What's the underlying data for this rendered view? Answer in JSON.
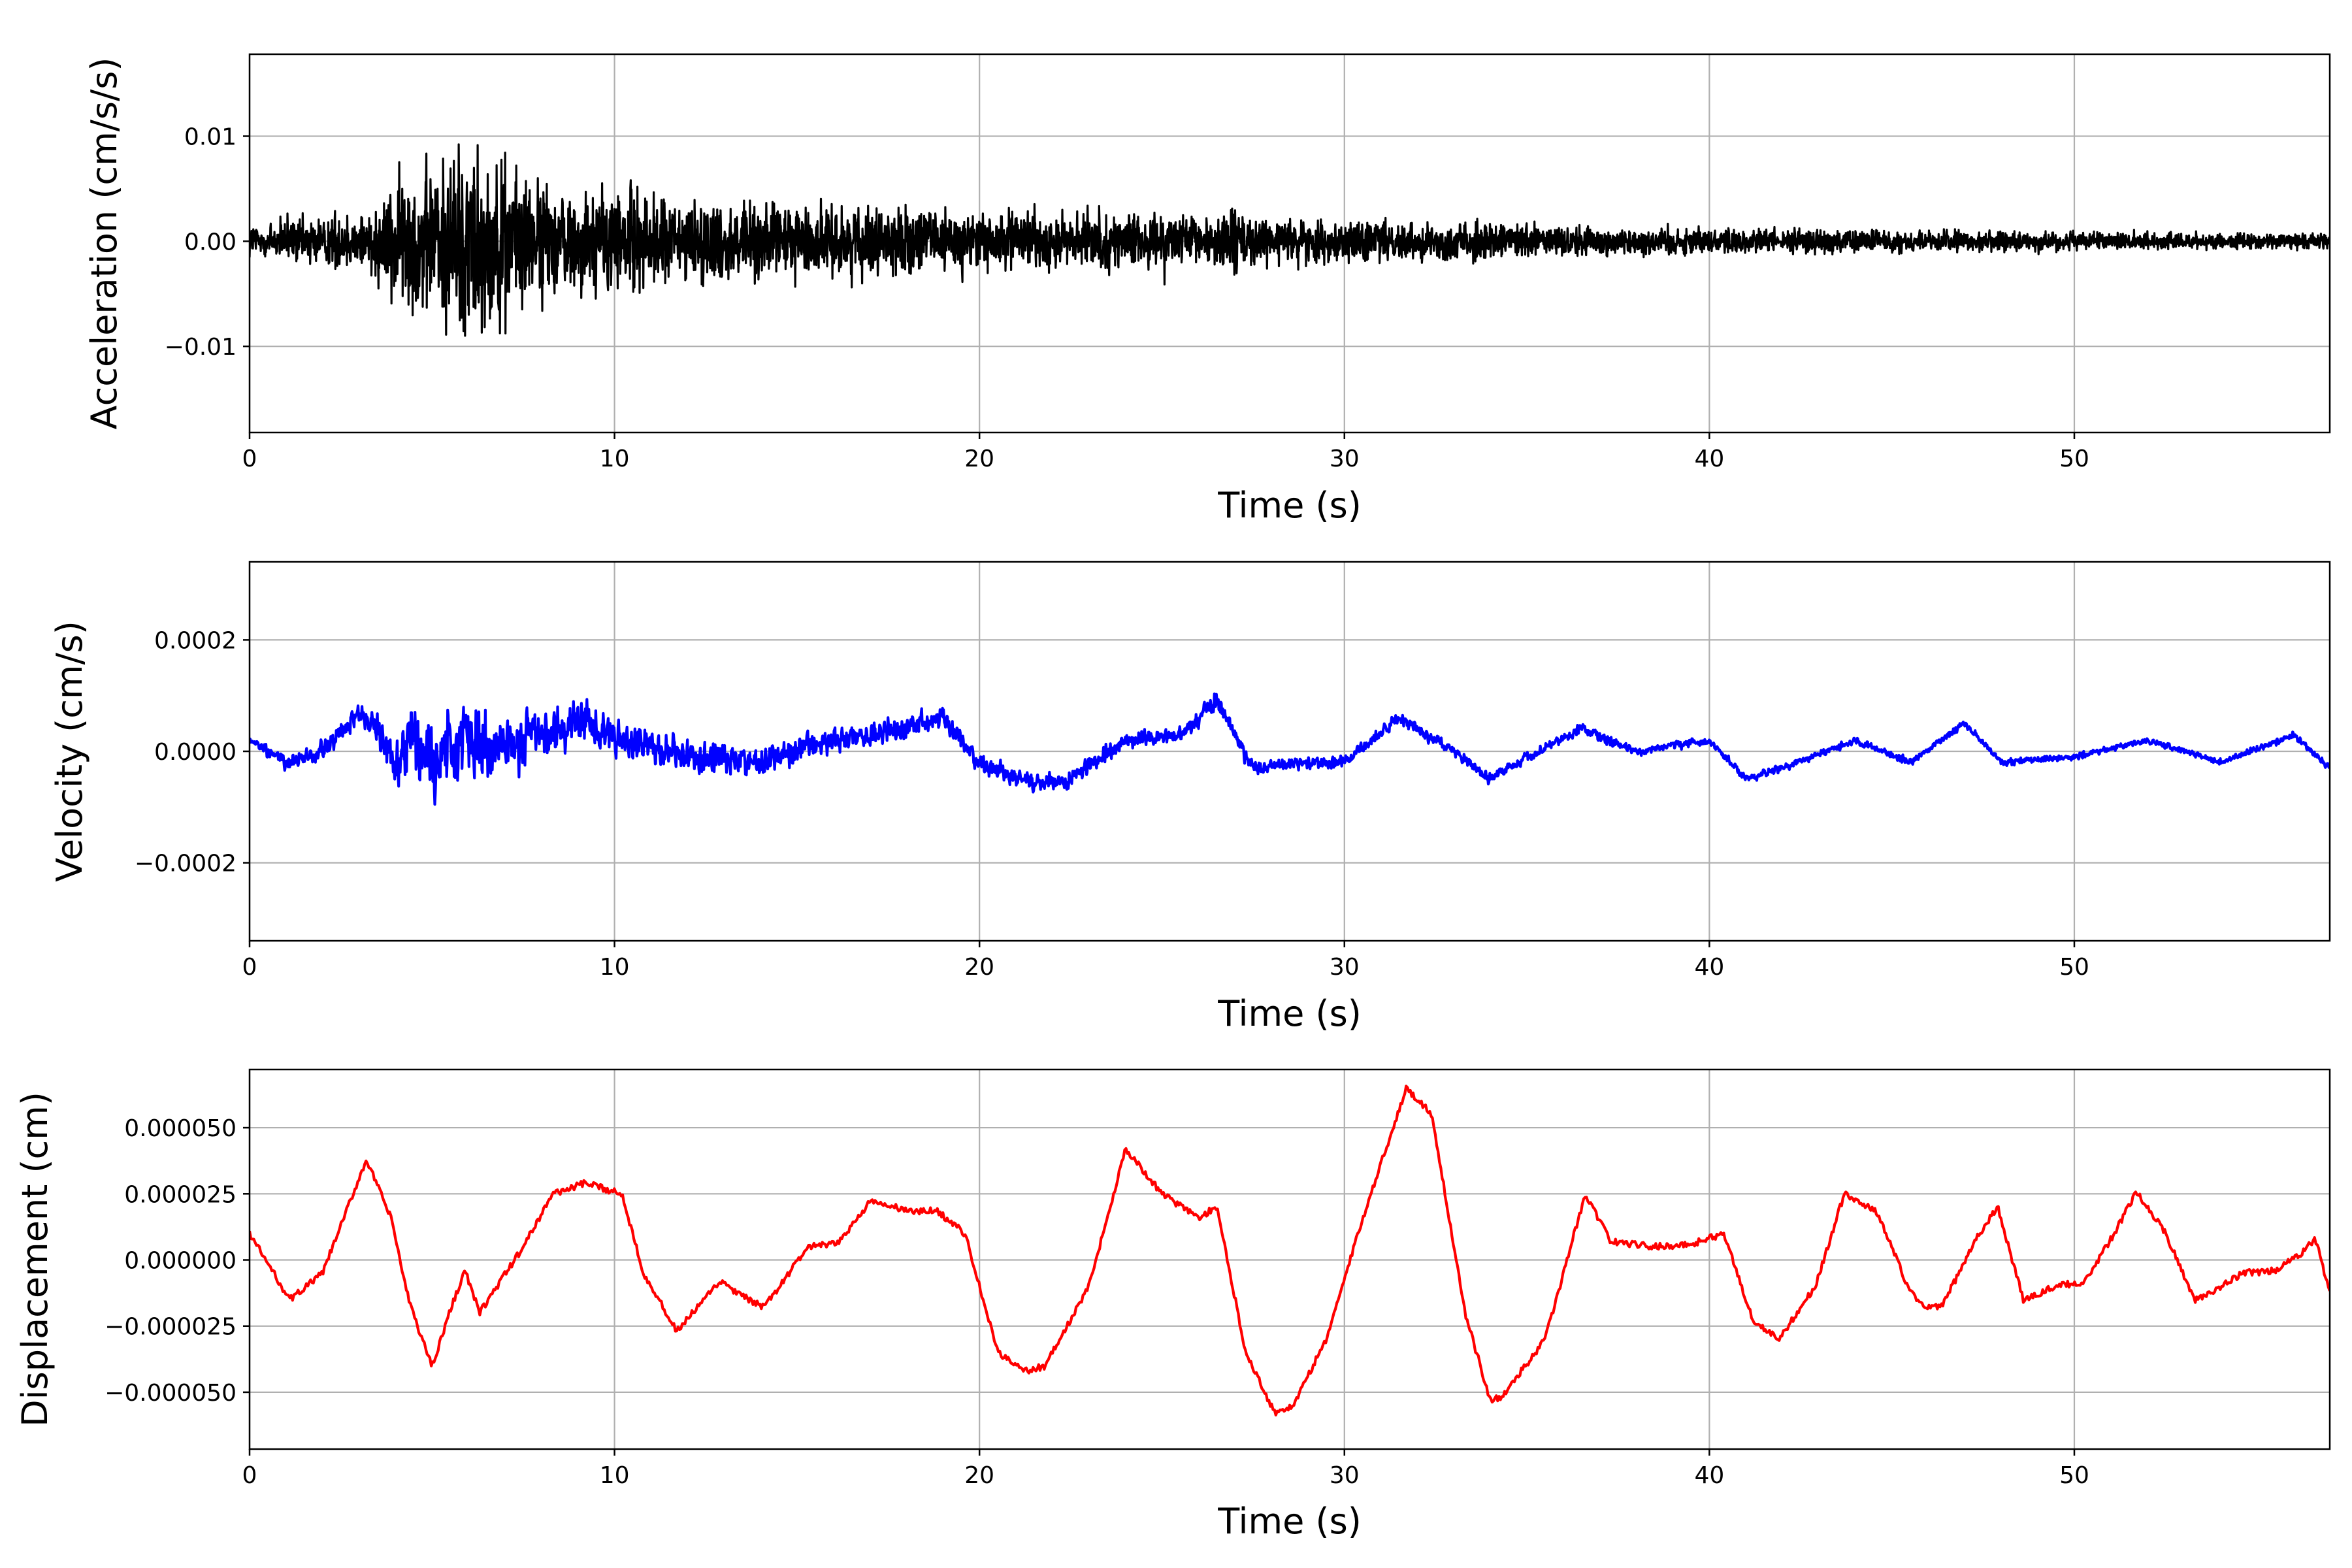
{
  "chart_data": [
    {
      "type": "line",
      "xlabel": "Time (s)",
      "ylabel": "Acceleration (cm/s/s)",
      "xlim": [
        0,
        57
      ],
      "ylim": [
        -0.0182,
        0.0178
      ],
      "xticks": [
        0,
        10,
        20,
        30,
        40,
        50
      ],
      "xtick_labels": [
        "0",
        "10",
        "20",
        "30",
        "40",
        "50"
      ],
      "yticks": [
        -0.01,
        0.0,
        0.01
      ],
      "ytick_labels": [
        "−0.01",
        "0.00",
        "0.01"
      ],
      "grid": true,
      "color": "#000000",
      "series": [
        {
          "x": [
            0,
            1,
            2,
            3,
            3.5,
            4,
            4.3,
            4.6,
            5,
            5.3,
            5.6,
            5.9,
            6.2,
            6.6,
            7,
            7.5,
            8,
            9,
            10,
            11,
            12,
            13,
            14,
            15,
            16,
            18,
            20,
            22,
            24,
            26,
            26.7,
            28,
            30,
            32,
            33,
            35,
            37,
            40,
            43,
            45,
            48,
            50,
            52,
            55,
            57
          ],
          "amplitude": [
            0.0025,
            0.003,
            0.0035,
            0.004,
            0.0055,
            0.008,
            0.0095,
            0.01,
            0.0105,
            0.011,
            0.0125,
            0.0145,
            0.0125,
            0.011,
            0.0105,
            0.009,
            0.0075,
            0.0065,
            0.0075,
            0.006,
            0.0055,
            0.0055,
            0.005,
            0.0048,
            0.0045,
            0.0042,
            0.004,
            0.0036,
            0.0034,
            0.0032,
            0.0045,
            0.0028,
            0.0027,
            0.0025,
            0.0028,
            0.0022,
            0.002,
            0.0018,
            0.0016,
            0.0015,
            0.0013,
            0.0012,
            0.0011,
            0.001,
            0.001
          ]
        }
      ]
    },
    {
      "type": "line",
      "xlabel": "Time (s)",
      "ylabel": "Velocity (cm/s)",
      "xlim": [
        0,
        57
      ],
      "ylim": [
        -0.00034,
        0.00034
      ],
      "xticks": [
        0,
        10,
        20,
        30,
        40,
        50
      ],
      "xtick_labels": [
        "0",
        "10",
        "20",
        "30",
        "40",
        "50"
      ],
      "yticks": [
        -0.0002,
        0.0,
        0.0002
      ],
      "ytick_labels": [
        "−0.0002",
        "0.0000",
        "0.0002"
      ],
      "grid": true,
      "color": "#0000ff",
      "series": [
        {
          "x": [
            0,
            1,
            2,
            3,
            3.5,
            4,
            4.3,
            4.6,
            5,
            5.5,
            5.9,
            6.3,
            7,
            8,
            9,
            10,
            12,
            14,
            16,
            18,
            19,
            20,
            21.5,
            22.5,
            24,
            25.5,
            26.5,
            27.5,
            29,
            30,
            31.5,
            33,
            34,
            35,
            36.5,
            38,
            40,
            41,
            42,
            44,
            45.5,
            47,
            48,
            50,
            52,
            54,
            56,
            57
          ],
          "y": [
            2e-05,
            -2e-05,
            0.0,
            7e-05,
            4e-05,
            -3e-05,
            2e-05,
            0.0,
            -3e-05,
            2e-05,
            3e-05,
            1e-05,
            1e-05,
            3e-05,
            5e-05,
            3e-05,
            -1e-05,
            -2e-05,
            2e-05,
            4e-05,
            6e-05,
            -2e-05,
            -6e-05,
            -5e-05,
            2e-05,
            3e-05,
            9e-05,
            -3e-05,
            -2e-05,
            -2e-05,
            6e-05,
            0.0,
            -5e-05,
            -1e-05,
            4e-05,
            0.0,
            2e-05,
            -5e-05,
            -3e-05,
            2e-05,
            -2e-05,
            5e-05,
            -2e-05,
            -1e-05,
            2e-05,
            -2e-05,
            3e-05,
            -3e-05
          ],
          "noise": [
            1e-05,
            2e-05,
            3e-05,
            3e-05,
            4e-05,
            7e-05,
            0.0001,
            0.0001,
            0.00011,
            0.00012,
            0.00014,
            0.0001,
            8e-05,
            7e-05,
            6e-05,
            5e-05,
            4.5e-05,
            4e-05,
            3.5e-05,
            3e-05,
            3e-05,
            3e-05,
            2.5e-05,
            2.5e-05,
            2.2e-05,
            2e-05,
            3e-05,
            2e-05,
            1.8e-05,
            1.7e-05,
            1.6e-05,
            1.5e-05,
            1.5e-05,
            1.4e-05,
            1.3e-05,
            1.2e-05,
            1.2e-05,
            1.1e-05,
            1e-05,
            1e-05,
            1e-05,
            1e-05,
            1e-05,
            9e-06,
            9e-06,
            9e-06,
            9e-06,
            9e-06
          ]
        }
      ]
    },
    {
      "type": "line",
      "xlabel": "Time (s)",
      "ylabel": "Displacement (cm)",
      "xlim": [
        0,
        57
      ],
      "ylim": [
        -7.15e-05,
        7.2e-05
      ],
      "xticks": [
        0,
        10,
        20,
        30,
        40,
        50
      ],
      "xtick_labels": [
        "0",
        "10",
        "20",
        "30",
        "40",
        "50"
      ],
      "yticks": [
        -5e-05,
        -2.5e-05,
        0.0,
        2.5e-05,
        5e-05
      ],
      "ytick_labels": [
        "−0.000050",
        "−0.000025",
        "0.000000",
        "0.000025",
        "0.000050"
      ],
      "grid": true,
      "color": "#ff0000",
      "series": [
        {
          "x": [
            0,
            1.1,
            2.0,
            3.2,
            3.9,
            4.3,
            4.6,
            5.0,
            5.6,
            5.9,
            6.3,
            7.5,
            8.3,
            9.2,
            10.2,
            10.8,
            11.7,
            12.9,
            13.4,
            14.1,
            15.3,
            16.1,
            17.0,
            18.3,
            18.8,
            19.6,
            20.5,
            21.3,
            21.8,
            23.0,
            24.0,
            25.0,
            26.0,
            26.5,
            27.3,
            28.1,
            28.6,
            29.5,
            30.6,
            31.7,
            32.4,
            33.3,
            34.0,
            34.3,
            35.5,
            36.6,
            37.3,
            38.5,
            39.5,
            40.4,
            41.2,
            41.9,
            42.9,
            43.7,
            44.6,
            45.5,
            45.9,
            46.4,
            47.3,
            47.9,
            48.6,
            49.5,
            50.3,
            51.1,
            51.7,
            52.5,
            53.3,
            53.8,
            54.6,
            55.5,
            56.2,
            56.6,
            57.0
          ],
          "y": [
            1e-05,
            -1.5e-05,
            -5e-06,
            3.8e-05,
            1.5e-05,
            -1.2e-05,
            -2.5e-05,
            -4e-05,
            -1.5e-05,
            -4e-06,
            -2e-05,
            5e-06,
            2.5e-05,
            2.9e-05,
            2.5e-05,
            -5e-06,
            -2.7e-05,
            -8e-06,
            -1.3e-05,
            -1.8e-05,
            5e-06,
            6e-06,
            2.2e-05,
            1.8e-05,
            1.9e-05,
            1e-05,
            -3.5e-05,
            -4.2e-05,
            -4e-05,
            -1e-05,
            4.2e-05,
            2.5e-05,
            1.6e-05,
            2e-05,
            -3.5e-05,
            -5.8e-05,
            -5.5e-05,
            -3e-05,
            2e-05,
            6.5e-05,
            5.5e-05,
            -2e-05,
            -5.3e-05,
            -5.2e-05,
            -3e-05,
            2.5e-05,
            7e-06,
            5e-06,
            6e-06,
            1e-05,
            -2.3e-05,
            -3e-05,
            -1e-05,
            2.5e-05,
            1.8e-05,
            -1.2e-05,
            -1.8e-05,
            -1.7e-05,
            8e-06,
            2e-05,
            -1.5e-05,
            -1e-05,
            -8e-06,
            1e-05,
            2.6e-05,
            1e-05,
            -1.5e-05,
            -1.2e-05,
            -5e-06,
            -4e-06,
            2e-06,
            8e-06,
            -1.2e-05
          ]
        }
      ]
    }
  ]
}
